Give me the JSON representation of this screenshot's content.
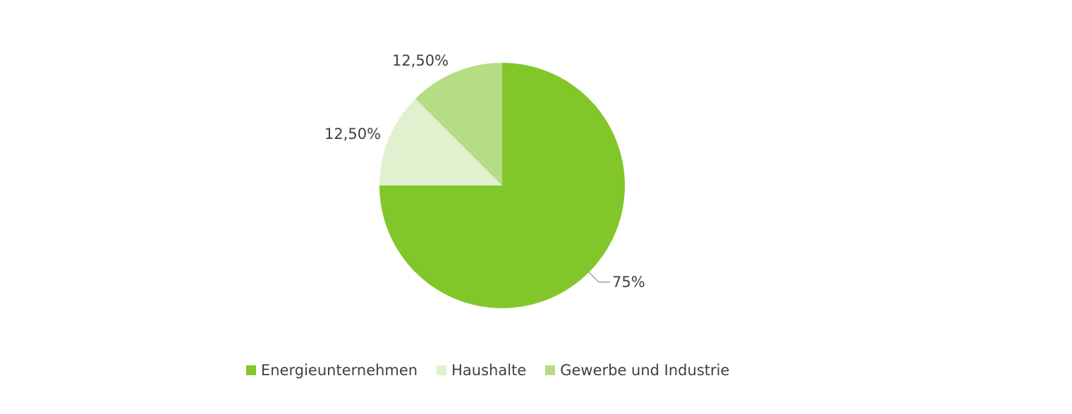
{
  "chart_data": {
    "type": "pie",
    "categories": [
      "Energieunternehmen",
      "Haushalte",
      "Gewerbe und Industrie"
    ],
    "values": [
      75,
      12.5,
      12.5
    ],
    "value_labels": [
      "75%",
      "12,50%",
      "12,50%"
    ],
    "colors": [
      "#82c729",
      "#e1f1cf",
      "#b5dd84"
    ],
    "start": "12 o'clock",
    "direction": "clockwise",
    "legend_position": "bottom",
    "title": "",
    "leader_line_color": "#8c8c8c",
    "label_color": "#404040"
  },
  "legend": {
    "items": [
      {
        "label": "Energieunternehmen",
        "color": "#82c729"
      },
      {
        "label": "Haushalte",
        "color": "#e1f1cf"
      },
      {
        "label": "Gewerbe und Industrie",
        "color": "#b5dd84"
      }
    ]
  }
}
